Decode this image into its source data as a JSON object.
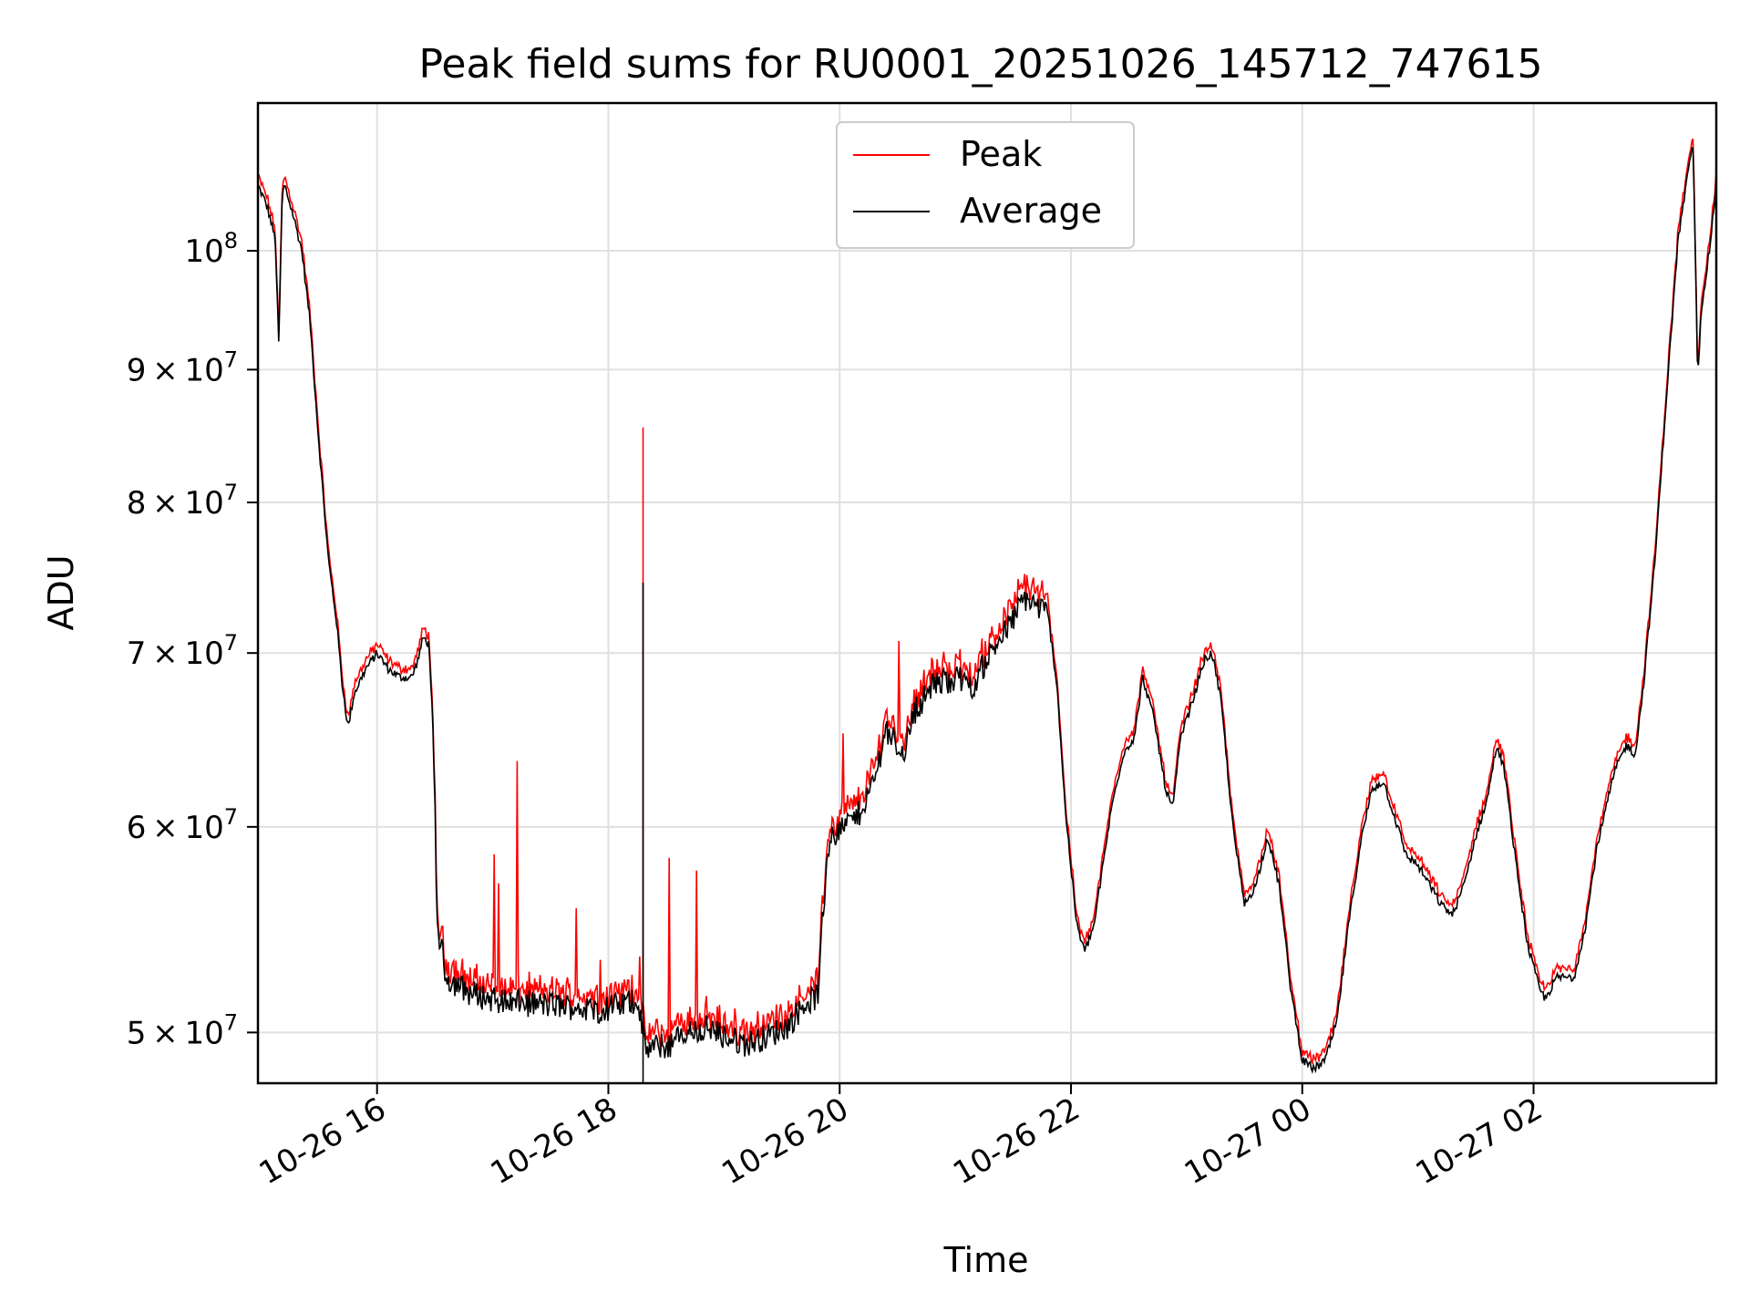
{
  "chart_data": {
    "type": "line",
    "title": "Peak field sums for RU0001_20251026_145712_747615",
    "xlabel": "Time",
    "ylabel": "ADU",
    "yscale": "log",
    "x_unit": "hours since 2025-10-26 00:00",
    "xlim": [
      14.97,
      27.58
    ],
    "ylim": [
      47800000,
      114000000
    ],
    "grid": true,
    "legend_position": "upper center",
    "x_ticks": [
      {
        "value": 16,
        "label": "10-26 16"
      },
      {
        "value": 18,
        "label": "10-26 18"
      },
      {
        "value": 20,
        "label": "10-26 20"
      },
      {
        "value": 22,
        "label": "10-26 22"
      },
      {
        "value": 24,
        "label": "10-27 00"
      },
      {
        "value": 26,
        "label": "10-27 02"
      }
    ],
    "y_ticks": [
      {
        "value": 50000000,
        "mantissa": "5",
        "times": "×",
        "base": "10",
        "exp": "7"
      },
      {
        "value": 60000000,
        "mantissa": "6",
        "times": "×",
        "base": "10",
        "exp": "7"
      },
      {
        "value": 70000000,
        "mantissa": "7",
        "times": "×",
        "base": "10",
        "exp": "7"
      },
      {
        "value": 80000000,
        "mantissa": "8",
        "times": "×",
        "base": "10",
        "exp": "7"
      },
      {
        "value": 90000000,
        "mantissa": "9",
        "times": "×",
        "base": "10",
        "exp": "7"
      },
      {
        "value": 100000000,
        "mantissa": "",
        "times": "",
        "base": "10",
        "exp": "8"
      }
    ],
    "series": [
      {
        "name": "Peak",
        "color": "#ff0000"
      },
      {
        "name": "Average",
        "color": "#000000"
      }
    ],
    "average_points": [
      [
        14.97,
        106000000
      ],
      [
        15.05,
        104000000
      ],
      [
        15.12,
        101000000
      ],
      [
        15.15,
        92000000
      ],
      [
        15.18,
        105000000
      ],
      [
        15.2,
        106000000
      ],
      [
        15.28,
        103000000
      ],
      [
        15.35,
        100000000
      ],
      [
        15.42,
        94000000
      ],
      [
        15.5,
        84000000
      ],
      [
        15.58,
        76000000
      ],
      [
        15.65,
        72000000
      ],
      [
        15.7,
        68000000
      ],
      [
        15.75,
        65500000
      ],
      [
        15.8,
        67500000
      ],
      [
        15.9,
        69000000
      ],
      [
        16.0,
        70000000
      ],
      [
        16.1,
        69000000
      ],
      [
        16.2,
        68500000
      ],
      [
        16.3,
        68500000
      ],
      [
        16.35,
        69500000
      ],
      [
        16.4,
        71000000
      ],
      [
        16.45,
        70500000
      ],
      [
        16.48,
        66000000
      ],
      [
        16.5,
        61000000
      ],
      [
        16.52,
        55000000
      ],
      [
        16.6,
        52500000
      ],
      [
        16.8,
        51800000
      ],
      [
        17.0,
        51500000
      ],
      [
        17.3,
        51300000
      ],
      [
        17.6,
        51200000
      ],
      [
        17.9,
        51000000
      ],
      [
        18.1,
        51200000
      ],
      [
        18.25,
        51500000
      ],
      [
        18.32,
        49300000
      ],
      [
        18.5,
        49400000
      ],
      [
        18.7,
        50000000
      ],
      [
        18.85,
        50200000
      ],
      [
        19.0,
        49800000
      ],
      [
        19.2,
        49500000
      ],
      [
        19.4,
        49900000
      ],
      [
        19.55,
        50300000
      ],
      [
        19.7,
        51300000
      ],
      [
        19.82,
        51700000
      ],
      [
        19.85,
        55000000
      ],
      [
        19.9,
        59000000
      ],
      [
        20.0,
        60000000
      ],
      [
        20.15,
        60500000
      ],
      [
        20.3,
        62500000
      ],
      [
        20.4,
        65500000
      ],
      [
        20.55,
        64000000
      ],
      [
        20.65,
        66500000
      ],
      [
        20.8,
        68000000
      ],
      [
        21.0,
        68500000
      ],
      [
        21.15,
        68000000
      ],
      [
        21.3,
        70000000
      ],
      [
        21.45,
        71500000
      ],
      [
        21.6,
        73500000
      ],
      [
        21.8,
        72500000
      ],
      [
        21.88,
        68000000
      ],
      [
        21.95,
        61000000
      ],
      [
        22.05,
        55000000
      ],
      [
        22.12,
        53700000
      ],
      [
        22.2,
        55000000
      ],
      [
        22.35,
        61000000
      ],
      [
        22.45,
        64000000
      ],
      [
        22.55,
        65000000
      ],
      [
        22.62,
        68500000
      ],
      [
        22.72,
        66000000
      ],
      [
        22.82,
        62000000
      ],
      [
        22.88,
        61000000
      ],
      [
        22.95,
        65000000
      ],
      [
        23.05,
        67000000
      ],
      [
        23.15,
        69500000
      ],
      [
        23.22,
        70000000
      ],
      [
        23.3,
        67000000
      ],
      [
        23.4,
        60000000
      ],
      [
        23.5,
        56000000
      ],
      [
        23.6,
        57000000
      ],
      [
        23.7,
        59500000
      ],
      [
        23.8,
        57000000
      ],
      [
        23.9,
        52000000
      ],
      [
        24.0,
        48800000
      ],
      [
        24.1,
        48400000
      ],
      [
        24.2,
        48800000
      ],
      [
        24.3,
        50500000
      ],
      [
        24.4,
        55000000
      ],
      [
        24.5,
        59000000
      ],
      [
        24.6,
        62000000
      ],
      [
        24.7,
        62500000
      ],
      [
        24.8,
        60500000
      ],
      [
        24.9,
        58500000
      ],
      [
        25.0,
        58000000
      ],
      [
        25.1,
        57000000
      ],
      [
        25.2,
        56000000
      ],
      [
        25.3,
        55500000
      ],
      [
        25.4,
        57000000
      ],
      [
        25.5,
        59500000
      ],
      [
        25.6,
        61500000
      ],
      [
        25.68,
        64500000
      ],
      [
        25.75,
        63000000
      ],
      [
        25.85,
        58000000
      ],
      [
        25.95,
        54000000
      ],
      [
        26.05,
        52000000
      ],
      [
        26.1,
        51500000
      ],
      [
        26.2,
        52500000
      ],
      [
        26.35,
        52500000
      ],
      [
        26.45,
        55000000
      ],
      [
        26.55,
        59000000
      ],
      [
        26.7,
        63000000
      ],
      [
        26.8,
        64500000
      ],
      [
        26.88,
        64000000
      ],
      [
        26.95,
        68000000
      ],
      [
        27.05,
        76000000
      ],
      [
        27.15,
        88000000
      ],
      [
        27.25,
        101000000
      ],
      [
        27.32,
        106000000
      ],
      [
        27.38,
        110000000
      ],
      [
        27.42,
        89000000
      ],
      [
        27.45,
        95000000
      ],
      [
        27.52,
        100000000
      ],
      [
        27.58,
        106000000
      ]
    ],
    "annotations_spikes": [
      {
        "x": 18.3,
        "peak": 85500000,
        "average": 74500000
      }
    ]
  }
}
